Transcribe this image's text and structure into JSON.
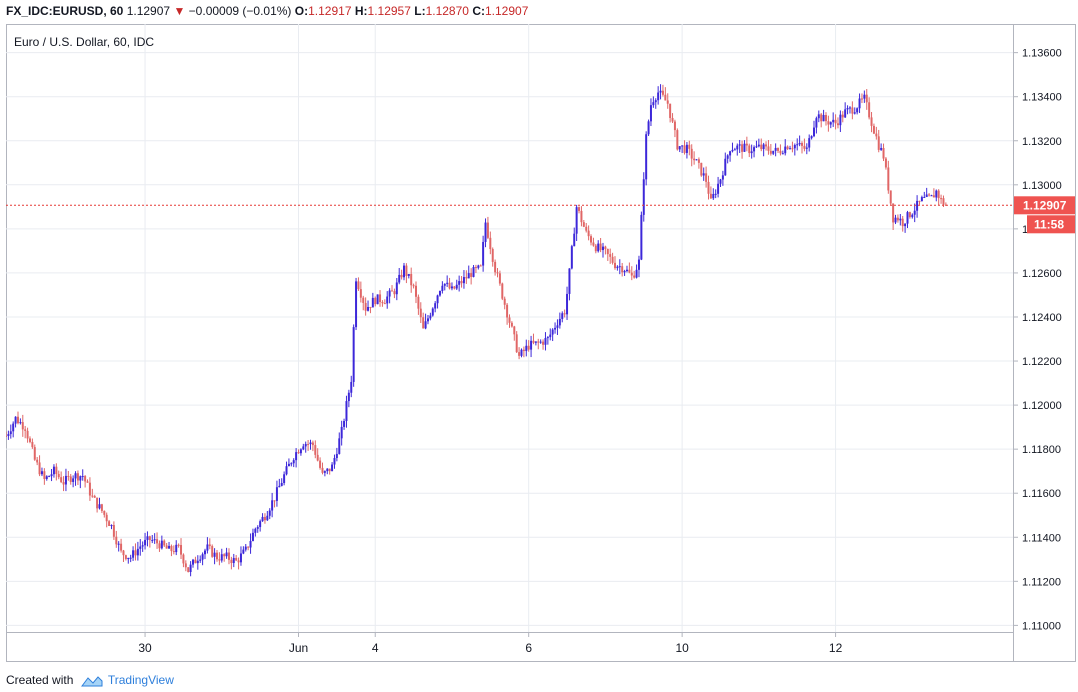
{
  "header": {
    "symbol": "FX_IDC:EURUSD, 60",
    "last": "1.12907",
    "change": "−0.00009 (−0.01%)",
    "open_label": "O:",
    "open": "1.12917",
    "high_label": "H:",
    "high": "1.12957",
    "low_label": "L:",
    "low": "1.12870",
    "close_label": "C:",
    "close": "1.12907"
  },
  "footer": {
    "created_with": "Created with",
    "brand": "TradingView"
  },
  "colors": {
    "up": "#3c27d9",
    "down": "#e06666",
    "grid": "#e9ecf1",
    "price_line": "#e53935",
    "label_bg": "#ef5350"
  },
  "chart_data": {
    "type": "candlestick",
    "title": "Euro / U.S. Dollar, 60, IDC",
    "ylim": [
      1.1097,
      1.1373
    ],
    "xlim": [
      -45,
      1005
    ],
    "y_ticks": [
      "1.13600",
      "1.13400",
      "1.13200",
      "1.13000",
      "1.12800",
      "1.12600",
      "1.12400",
      "1.12200",
      "1.12000",
      "1.11800",
      "1.11600",
      "1.11400",
      "1.11200",
      "1.11000"
    ],
    "x_ticks": [
      {
        "label": "30",
        "t": 100
      },
      {
        "label": "Jun",
        "t": 260
      },
      {
        "label": "4",
        "t": 340
      },
      {
        "label": "6",
        "t": 500
      },
      {
        "label": "10",
        "t": 660
      },
      {
        "label": "12",
        "t": 820
      }
    ],
    "last_price_label": "1.12907",
    "countdown_label": "11:58",
    "last_price": 1.12907,
    "path": [
      [
        -45,
        1.1186
      ],
      [
        -35,
        1.1194
      ],
      [
        -25,
        1.119
      ],
      [
        -15,
        1.1175
      ],
      [
        -5,
        1.1166
      ],
      [
        5,
        1.117
      ],
      [
        15,
        1.1165
      ],
      [
        25,
        1.1168
      ],
      [
        35,
        1.1168
      ],
      [
        45,
        1.1158
      ],
      [
        55,
        1.1152
      ],
      [
        65,
        1.1145
      ],
      [
        75,
        1.1133
      ],
      [
        85,
        1.1131
      ],
      [
        95,
        1.1136
      ],
      [
        105,
        1.1139
      ],
      [
        115,
        1.1137
      ],
      [
        125,
        1.1134
      ],
      [
        135,
        1.1135
      ],
      [
        145,
        1.1125
      ],
      [
        155,
        1.1131
      ],
      [
        165,
        1.1135
      ],
      [
        175,
        1.1131
      ],
      [
        185,
        1.1131
      ],
      [
        195,
        1.1129
      ],
      [
        205,
        1.1134
      ],
      [
        215,
        1.1144
      ],
      [
        225,
        1.115
      ],
      [
        235,
        1.1158
      ],
      [
        245,
        1.1168
      ],
      [
        255,
        1.1177
      ],
      [
        265,
        1.1183
      ],
      [
        275,
        1.1182
      ],
      [
        285,
        1.1168
      ],
      [
        295,
        1.1172
      ],
      [
        305,
        1.1188
      ],
      [
        315,
        1.1212
      ],
      [
        320,
        1.1258
      ],
      [
        330,
        1.1244
      ],
      [
        340,
        1.1248
      ],
      [
        350,
        1.1248
      ],
      [
        360,
        1.1252
      ],
      [
        370,
        1.1262
      ],
      [
        380,
        1.1253
      ],
      [
        390,
        1.1234
      ],
      [
        400,
        1.1245
      ],
      [
        410,
        1.1256
      ],
      [
        420,
        1.1252
      ],
      [
        430,
        1.1256
      ],
      [
        440,
        1.126
      ],
      [
        450,
        1.1262
      ],
      [
        455,
        1.1283
      ],
      [
        465,
        1.1262
      ],
      [
        475,
        1.1246
      ],
      [
        485,
        1.123
      ],
      [
        490,
        1.1222
      ],
      [
        500,
        1.1227
      ],
      [
        510,
        1.1228
      ],
      [
        520,
        1.123
      ],
      [
        530,
        1.1238
      ],
      [
        538,
        1.1243
      ],
      [
        543,
        1.1262
      ],
      [
        550,
        1.129
      ],
      [
        560,
        1.1278
      ],
      [
        570,
        1.1272
      ],
      [
        580,
        1.1269
      ],
      [
        590,
        1.1264
      ],
      [
        600,
        1.1262
      ],
      [
        608,
        1.1258
      ],
      [
        615,
        1.1265
      ],
      [
        622,
        1.132
      ],
      [
        628,
        1.1338
      ],
      [
        635,
        1.1342
      ],
      [
        645,
        1.1337
      ],
      [
        655,
        1.1318
      ],
      [
        665,
        1.1316
      ],
      [
        675,
        1.131
      ],
      [
        685,
        1.1302
      ],
      [
        690,
        1.1292
      ],
      [
        700,
        1.1303
      ],
      [
        710,
        1.1317
      ],
      [
        720,
        1.1317
      ],
      [
        730,
        1.1316
      ],
      [
        740,
        1.1317
      ],
      [
        750,
        1.1316
      ],
      [
        760,
        1.1315
      ],
      [
        770,
        1.1318
      ],
      [
        780,
        1.1318
      ],
      [
        790,
        1.1316
      ],
      [
        800,
        1.1332
      ],
      [
        810,
        1.1329
      ],
      [
        820,
        1.1328
      ],
      [
        830,
        1.1333
      ],
      [
        840,
        1.1335
      ],
      [
        850,
        1.1339
      ],
      [
        855,
        1.1332
      ],
      [
        865,
        1.1318
      ],
      [
        870,
        1.1313
      ],
      [
        880,
        1.1285
      ],
      [
        885,
        1.1285
      ],
      [
        890,
        1.1283
      ],
      [
        900,
        1.1288
      ],
      [
        910,
        1.1293
      ],
      [
        920,
        1.1294
      ],
      [
        925,
        1.1297
      ],
      [
        930,
        1.1293
      ],
      [
        935,
        1.12907
      ]
    ]
  }
}
